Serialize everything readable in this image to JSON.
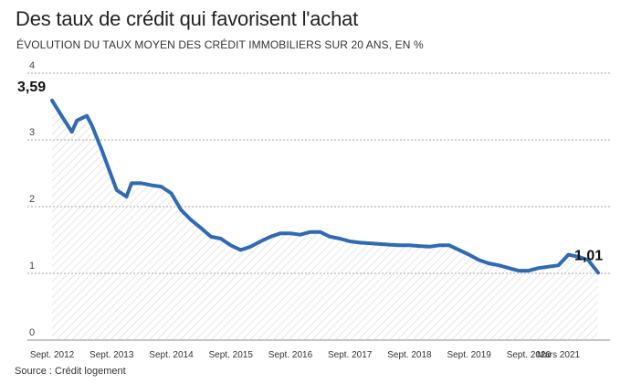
{
  "chart_data": {
    "type": "area",
    "title": "Des taux de crédit qui favorisent l'achat",
    "subtitle": "ÉVOLUTION DU TAUX MOYEN DES CRÉDIT IMMOBILIERS SUR 20 ANS, EN %",
    "source": "Source : Crédit logement",
    "xlabel": "",
    "ylabel": "",
    "ylim": [
      0,
      4
    ],
    "y_ticks": [
      "0",
      "1",
      "2",
      "3",
      "4"
    ],
    "x_tick_labels": [
      "Sept. 2012",
      "Sept. 2013",
      "Sept. 2014",
      "Sept. 2015",
      "Sept. 2016",
      "Sept. 2017",
      "Sept. 2018",
      "Sept. 2019",
      "Sept. 2020",
      "Mars 2021"
    ],
    "x_tick_months": [
      0,
      12,
      24,
      36,
      48,
      60,
      72,
      84,
      96,
      102
    ],
    "grid": true,
    "colors": {
      "line": "#2f6ab3",
      "grid": "#888888",
      "hatch": "#d5d5d5"
    },
    "annotations": [
      {
        "text": "3,59",
        "month": 0,
        "value": 3.59
      },
      {
        "text": "1,01",
        "month": 110,
        "value": 1.01
      }
    ],
    "series": [
      {
        "x_months": [
          0,
          2,
          4,
          5,
          7,
          8,
          10,
          13,
          15,
          16,
          18,
          20,
          22,
          24,
          26,
          28,
          30,
          32,
          34,
          36,
          38,
          40,
          42,
          44,
          46,
          48,
          50,
          52,
          54,
          56,
          58,
          60,
          62,
          64,
          66,
          68,
          70,
          72,
          74,
          76,
          78,
          80,
          82,
          84,
          86,
          88,
          90,
          92,
          94,
          96,
          97,
          98,
          100,
          102,
          104,
          106,
          108,
          110
        ],
        "values": [
          3.59,
          3.35,
          3.12,
          3.29,
          3.36,
          3.22,
          2.85,
          2.25,
          2.15,
          2.35,
          2.35,
          2.32,
          2.3,
          2.2,
          1.95,
          1.8,
          1.68,
          1.55,
          1.52,
          1.42,
          1.35,
          1.4,
          1.48,
          1.55,
          1.6,
          1.6,
          1.58,
          1.62,
          1.62,
          1.55,
          1.52,
          1.48,
          1.46,
          1.45,
          1.44,
          1.43,
          1.42,
          1.42,
          1.41,
          1.4,
          1.42,
          1.42,
          1.35,
          1.28,
          1.2,
          1.15,
          1.12,
          1.08,
          1.04,
          1.04,
          1.06,
          1.08,
          1.1,
          1.12,
          1.28,
          1.25,
          1.2,
          1.01
        ]
      }
    ]
  }
}
